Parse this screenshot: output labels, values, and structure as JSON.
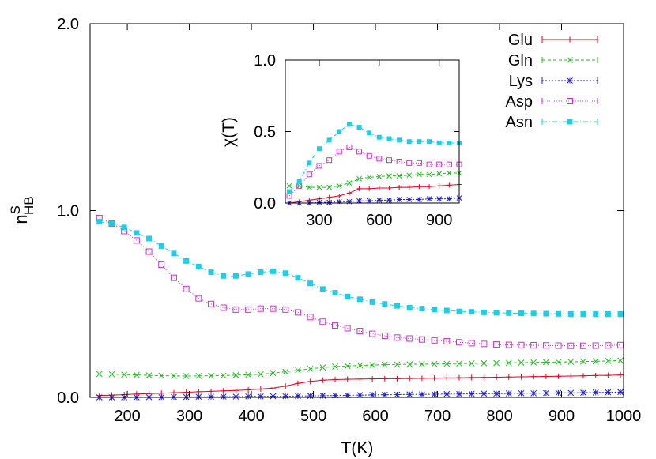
{
  "chart_data": [
    {
      "type": "line",
      "title": "",
      "xlabel": "T(K)",
      "ylabel": {
        "main": "n",
        "sup": "S",
        "sub": "HB"
      },
      "xlim": [
        140,
        1000
      ],
      "ylim": [
        0,
        2
      ],
      "xticks": [
        200,
        300,
        400,
        500,
        600,
        700,
        800,
        900,
        1000
      ],
      "xtick_labels": [
        "200",
        "300",
        "400",
        "500",
        "600",
        "700",
        "800",
        "900",
        "1000"
      ],
      "yticks": [
        0,
        1,
        2
      ],
      "ytick_labels": [
        "0.0",
        "1.0",
        "2.0"
      ],
      "grid": false,
      "legend_position": "top-right",
      "x": [
        155,
        175,
        195,
        215,
        235,
        255,
        275,
        295,
        315,
        335,
        355,
        375,
        395,
        415,
        435,
        455,
        475,
        495,
        515,
        535,
        555,
        575,
        595,
        615,
        635,
        655,
        675,
        695,
        715,
        735,
        755,
        775,
        795,
        815,
        835,
        855,
        875,
        895,
        915,
        935,
        955,
        975,
        995
      ],
      "series": [
        {
          "name": "Glu",
          "color": "#e8001c",
          "marker": "plus",
          "values": [
            0.01,
            0.012,
            0.015,
            0.018,
            0.02,
            0.022,
            0.025,
            0.027,
            0.03,
            0.032,
            0.035,
            0.037,
            0.04,
            0.045,
            0.05,
            0.06,
            0.075,
            0.085,
            0.092,
            0.095,
            0.097,
            0.098,
            0.099,
            0.1,
            0.1,
            0.101,
            0.102,
            0.103,
            0.104,
            0.105,
            0.106,
            0.107,
            0.108,
            0.109,
            0.11,
            0.111,
            0.112,
            0.113,
            0.114,
            0.115,
            0.117,
            0.118,
            0.12
          ]
        },
        {
          "name": "Gln",
          "color": "#22bb22",
          "marker": "x",
          "values": [
            0.125,
            0.124,
            0.122,
            0.12,
            0.118,
            0.116,
            0.115,
            0.114,
            0.115,
            0.116,
            0.117,
            0.119,
            0.121,
            0.124,
            0.13,
            0.137,
            0.145,
            0.153,
            0.16,
            0.165,
            0.168,
            0.171,
            0.173,
            0.175,
            0.176,
            0.177,
            0.178,
            0.179,
            0.18,
            0.181,
            0.182,
            0.183,
            0.184,
            0.185,
            0.186,
            0.187,
            0.188,
            0.189,
            0.19,
            0.192,
            0.193,
            0.195,
            0.197
          ]
        },
        {
          "name": "Lys",
          "color": "#2020dd",
          "marker": "star",
          "values": [
            0.0,
            0.0,
            0.0,
            0.0,
            0.001,
            0.001,
            0.002,
            0.002,
            0.003,
            0.003,
            0.004,
            0.004,
            0.005,
            0.005,
            0.006,
            0.006,
            0.007,
            0.008,
            0.009,
            0.01,
            0.011,
            0.012,
            0.013,
            0.014,
            0.015,
            0.016,
            0.016,
            0.017,
            0.018,
            0.018,
            0.019,
            0.02,
            0.02,
            0.021,
            0.022,
            0.022,
            0.023,
            0.024,
            0.024,
            0.025,
            0.026,
            0.027,
            0.028
          ]
        },
        {
          "name": "Asp",
          "color": "#cc33cc",
          "marker": "open-square",
          "values": [
            0.96,
            0.93,
            0.89,
            0.84,
            0.78,
            0.71,
            0.64,
            0.58,
            0.53,
            0.5,
            0.48,
            0.47,
            0.47,
            0.475,
            0.475,
            0.47,
            0.455,
            0.43,
            0.405,
            0.385,
            0.37,
            0.355,
            0.34,
            0.33,
            0.32,
            0.315,
            0.31,
            0.305,
            0.3,
            0.295,
            0.29,
            0.286,
            0.283,
            0.281,
            0.28,
            0.279,
            0.278,
            0.277,
            0.276,
            0.276,
            0.277,
            0.278,
            0.28
          ]
        },
        {
          "name": "Asn",
          "color": "#1ccfe8",
          "marker": "filled-square",
          "values": [
            0.94,
            0.93,
            0.91,
            0.88,
            0.85,
            0.81,
            0.77,
            0.73,
            0.7,
            0.67,
            0.65,
            0.65,
            0.66,
            0.67,
            0.675,
            0.665,
            0.64,
            0.61,
            0.58,
            0.56,
            0.54,
            0.525,
            0.51,
            0.5,
            0.49,
            0.48,
            0.475,
            0.47,
            0.465,
            0.46,
            0.458,
            0.455,
            0.453,
            0.451,
            0.45,
            0.449,
            0.448,
            0.447,
            0.446,
            0.446,
            0.446,
            0.446,
            0.446
          ]
        }
      ]
    },
    {
      "type": "line",
      "title": "",
      "xlabel": "",
      "ylabel": "χ(T)",
      "xlim": [
        130,
        1000
      ],
      "ylim": [
        0,
        1
      ],
      "xticks": [
        300,
        600,
        900
      ],
      "xtick_labels": [
        "300",
        "600",
        "900"
      ],
      "yticks": [
        0,
        0.5,
        1
      ],
      "ytick_labels": [
        "0.0",
        "0.5",
        "1.0"
      ],
      "grid": false,
      "x": [
        150,
        200,
        250,
        300,
        350,
        400,
        450,
        500,
        550,
        600,
        650,
        700,
        750,
        800,
        850,
        900,
        950,
        1000
      ],
      "series": [
        {
          "name": "Glu",
          "color": "#e8001c",
          "marker": "plus",
          "values": [
            0.0,
            0.01,
            0.02,
            0.03,
            0.04,
            0.05,
            0.07,
            0.1,
            0.1,
            0.105,
            0.105,
            0.11,
            0.11,
            0.115,
            0.115,
            0.12,
            0.125,
            0.13
          ]
        },
        {
          "name": "Gln",
          "color": "#22bb22",
          "marker": "x",
          "values": [
            0.12,
            0.12,
            0.11,
            0.11,
            0.11,
            0.12,
            0.14,
            0.17,
            0.18,
            0.185,
            0.19,
            0.19,
            0.195,
            0.2,
            0.2,
            0.205,
            0.21,
            0.21
          ]
        },
        {
          "name": "Lys",
          "color": "#2020dd",
          "marker": "star",
          "values": [
            0.0,
            0.0,
            0.0,
            0.005,
            0.005,
            0.01,
            0.01,
            0.015,
            0.015,
            0.02,
            0.02,
            0.025,
            0.025,
            0.025,
            0.03,
            0.03,
            0.03,
            0.035
          ]
        },
        {
          "name": "Asp",
          "color": "#cc33cc",
          "marker": "open-square",
          "values": [
            0.05,
            0.12,
            0.2,
            0.26,
            0.3,
            0.36,
            0.39,
            0.36,
            0.33,
            0.31,
            0.3,
            0.29,
            0.28,
            0.28,
            0.27,
            0.27,
            0.27,
            0.27
          ]
        },
        {
          "name": "Asn",
          "color": "#1ccfe8",
          "marker": "filled-square",
          "values": [
            0.08,
            0.15,
            0.28,
            0.38,
            0.44,
            0.5,
            0.55,
            0.53,
            0.49,
            0.46,
            0.45,
            0.44,
            0.43,
            0.43,
            0.43,
            0.42,
            0.42,
            0.42
          ]
        }
      ]
    }
  ]
}
